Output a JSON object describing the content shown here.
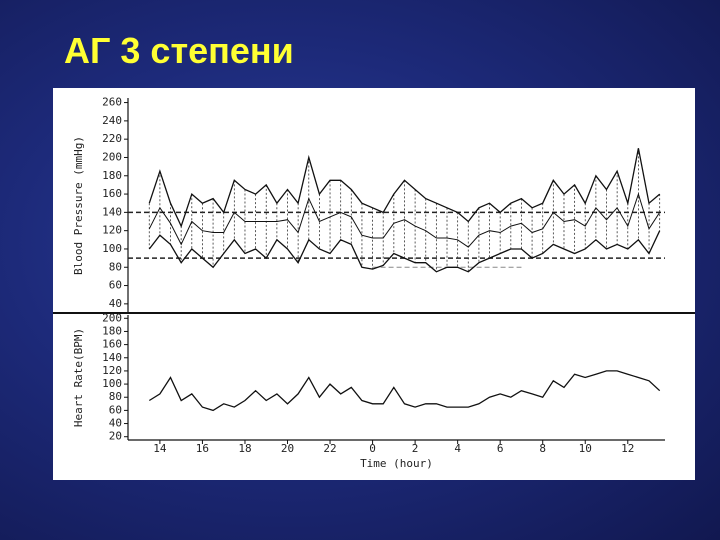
{
  "slide_title": "АГ 3 степени",
  "chart_data": [
    {
      "type": "line",
      "ylabel": "Blood Pressure (mmHg)",
      "x": [
        13.5,
        14,
        14.5,
        15,
        15.5,
        16,
        16.5,
        17,
        17.5,
        18,
        18.5,
        19,
        19.5,
        20,
        20.5,
        21,
        21.5,
        22,
        22.5,
        23,
        23.5,
        24,
        24.5,
        25,
        25.5,
        26,
        26.5,
        27,
        27.5,
        28,
        28.5,
        29,
        29.5,
        30,
        30.5,
        31,
        31.5,
        32,
        32.5,
        33,
        33.5,
        34,
        34.5,
        35,
        35.5,
        36,
        36.5,
        37,
        37.5
      ],
      "series": [
        {
          "values": [
            150,
            185,
            150,
            125,
            160,
            150,
            155,
            140,
            175,
            165,
            160,
            170,
            150,
            165,
            150,
            200,
            160,
            175,
            175,
            165,
            150,
            145,
            140,
            160,
            175,
            165,
            155,
            150,
            145,
            140,
            130,
            145,
            150,
            140,
            150,
            155,
            145,
            150,
            175,
            160,
            170,
            150,
            180,
            165,
            185,
            150,
            210,
            150,
            160
          ],
          "color": "#111111"
        },
        {
          "values": [
            122,
            145,
            128,
            105,
            130,
            120,
            118,
            118,
            140,
            130,
            130,
            130,
            130,
            132,
            118,
            155,
            130,
            135,
            140,
            135,
            115,
            112,
            112,
            128,
            132,
            125,
            120,
            112,
            112,
            110,
            102,
            115,
            120,
            118,
            125,
            128,
            118,
            122,
            140,
            130,
            132,
            125,
            145,
            132,
            145,
            125,
            160,
            122,
            140
          ],
          "color": "#111111"
        },
        {
          "values": [
            100,
            115,
            105,
            85,
            100,
            90,
            80,
            95,
            110,
            95,
            100,
            90,
            110,
            100,
            85,
            110,
            100,
            95,
            110,
            105,
            80,
            78,
            82,
            95,
            90,
            85,
            85,
            75,
            80,
            80,
            75,
            85,
            90,
            95,
            100,
            100,
            90,
            95,
            105,
            100,
            95,
            100,
            110,
            100,
            105,
            100,
            110,
            95,
            120
          ],
          "color": "#111111"
        }
      ],
      "range_connectors": true,
      "reference_lines": [
        {
          "y": 140
        },
        {
          "y": 90
        },
        {
          "y": 80,
          "xrange": [
            24,
            31
          ]
        }
      ],
      "xlim": [
        12.5,
        37.75
      ],
      "ylim": [
        30,
        265
      ],
      "yticks": [
        40,
        60,
        80,
        100,
        120,
        140,
        160,
        180,
        200,
        220,
        240,
        260
      ]
    },
    {
      "type": "line",
      "ylabel": "Heart Rate(BPM)",
      "xlabel": "Time (hour)",
      "x": [
        13.5,
        14,
        14.5,
        15,
        15.5,
        16,
        16.5,
        17,
        17.5,
        18,
        18.5,
        19,
        19.5,
        20,
        20.5,
        21,
        21.5,
        22,
        22.5,
        23,
        23.5,
        24,
        24.5,
        25,
        25.5,
        26,
        26.5,
        27,
        27.5,
        28,
        28.5,
        29,
        29.5,
        30,
        30.5,
        31,
        31.5,
        32,
        32.5,
        33,
        33.5,
        34,
        34.5,
        35,
        35.5,
        36,
        36.5,
        37,
        37.5
      ],
      "series": [
        {
          "values": [
            75,
            85,
            110,
            75,
            85,
            65,
            60,
            70,
            65,
            75,
            90,
            75,
            85,
            70,
            85,
            110,
            80,
            100,
            85,
            95,
            75,
            70,
            70,
            95,
            70,
            65,
            70,
            70,
            65,
            65,
            65,
            70,
            80,
            85,
            80,
            90,
            85,
            80,
            105,
            95,
            115,
            110,
            115,
            120,
            120,
            115,
            110,
            105,
            90
          ],
          "color": "#111111"
        }
      ],
      "xlim": [
        12.5,
        37.75
      ],
      "ylim": [
        15,
        205
      ],
      "xticks": [
        14,
        16,
        18,
        20,
        22,
        {
          "value": 24,
          "label": "0"
        },
        {
          "value": 26,
          "label": "2"
        },
        {
          "value": 28,
          "label": "4"
        },
        {
          "value": 30,
          "label": "6"
        },
        {
          "value": 32,
          "label": "8"
        },
        {
          "value": 34,
          "label": "10"
        },
        {
          "value": 36,
          "label": "12"
        }
      ],
      "yticks": [
        20,
        40,
        60,
        80,
        100,
        120,
        140,
        160,
        180,
        200
      ]
    }
  ]
}
